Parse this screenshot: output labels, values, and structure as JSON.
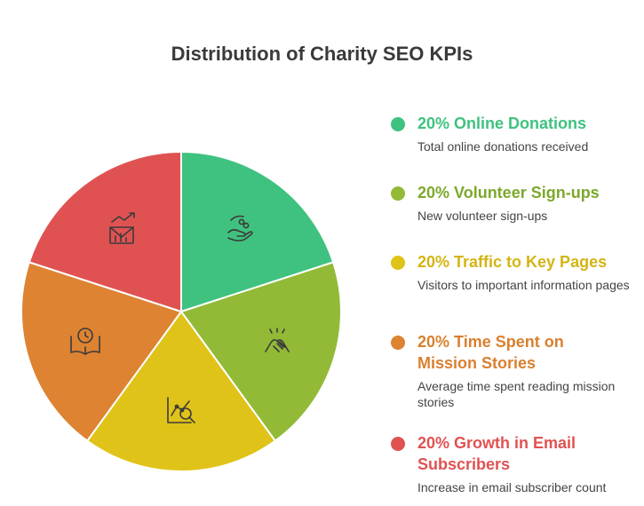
{
  "chart_data": {
    "type": "pie",
    "title": "Distribution of Charity SEO KPIs",
    "slices": [
      {
        "label": "Online Donations",
        "percent_label": "20% Online Donations",
        "value": 20,
        "description": "Total online donations received",
        "color": "#3fc27f",
        "icon": "hand-coins-icon"
      },
      {
        "label": "Volunteer Sign-ups",
        "percent_label": "20% Volunteer Sign-ups",
        "value": 20,
        "description": "New volunteer sign-ups",
        "color": "#92ba37",
        "icon": "joined-hands-icon"
      },
      {
        "label": "Traffic to Key Pages",
        "percent_label": "20% Traffic to Key Pages",
        "value": 20,
        "description": "Visitors to important information pages",
        "color": "#dfc318",
        "icon": "chart-magnifier-icon"
      },
      {
        "label": "Time Spent on Mission Stories",
        "percent_label": "20% Time Spent on Mission Stories",
        "value": 20,
        "description": "Average time spent reading mission stories",
        "color": "#dd8332",
        "icon": "book-clock-icon"
      },
      {
        "label": "Growth in Email Subscribers",
        "percent_label": "20% Growth in Email Subscribers",
        "value": 20,
        "description": "Increase in email subscriber count",
        "color": "#e05252",
        "icon": "email-growth-icon"
      }
    ],
    "legend_position": "right",
    "label_colors": [
      "#3fc27f",
      "#7da82c",
      "#d4b414",
      "#d9802f",
      "#e05252"
    ]
  }
}
